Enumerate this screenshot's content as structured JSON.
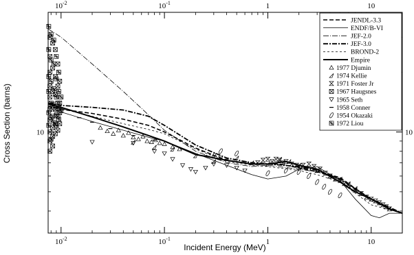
{
  "chart_data": {
    "type": "line",
    "title": "",
    "xlabel": "Incident Energy (MeV)",
    "ylabel": "Cross Section (barns)",
    "x_scale": "log",
    "y_scale": "log",
    "xlim": [
      0.0075,
      20
    ],
    "ylim": [
      3.1,
      40
    ],
    "x_ticks": [
      {
        "value": 0.01,
        "base": "10",
        "exp": "-2"
      },
      {
        "value": 0.1,
        "base": "10",
        "exp": "-1"
      },
      {
        "value": 1,
        "base": "1",
        "exp": ""
      },
      {
        "value": 10,
        "base": "10",
        "exp": ""
      }
    ],
    "y_ticks": [
      {
        "value": 10,
        "label": "10"
      }
    ],
    "grid": false,
    "legend_position": "top-right",
    "series": [
      {
        "name": "JENDL-3.3",
        "kind": "line",
        "dash": "6,3",
        "width": 1.6,
        "points": [
          [
            0.0075,
            13.5
          ],
          [
            0.01,
            13
          ],
          [
            0.02,
            12.4
          ],
          [
            0.04,
            11.6
          ],
          [
            0.07,
            10.8
          ],
          [
            0.1,
            10
          ],
          [
            0.2,
            8.3
          ],
          [
            0.4,
            7.2
          ],
          [
            0.7,
            6.9
          ],
          [
            1,
            6.9
          ],
          [
            1.3,
            6.9
          ],
          [
            2,
            6.6
          ],
          [
            3,
            6.3
          ],
          [
            5,
            5.9
          ],
          [
            7,
            5.2
          ],
          [
            10,
            4.6
          ],
          [
            15,
            4.1
          ],
          [
            20,
            3.9
          ]
        ]
      },
      {
        "name": "ENDF/B-VI",
        "kind": "line",
        "dash": "",
        "width": 0.8,
        "points": [
          [
            0.0075,
            13.2
          ],
          [
            0.01,
            12.6
          ],
          [
            0.02,
            11.3
          ],
          [
            0.04,
            10.2
          ],
          [
            0.07,
            9.4
          ],
          [
            0.1,
            9.0
          ],
          [
            0.2,
            7.8
          ],
          [
            0.4,
            6.8
          ],
          [
            0.7,
            6.1
          ],
          [
            1,
            5.8
          ],
          [
            1.5,
            6.0
          ],
          [
            2,
            6.5
          ],
          [
            3,
            6.7
          ],
          [
            5,
            5.7
          ],
          [
            7,
            4.6
          ],
          [
            10,
            3.8
          ],
          [
            12,
            3.7
          ],
          [
            15,
            3.9
          ],
          [
            20,
            3.9
          ]
        ]
      },
      {
        "name": "JEF-2.0",
        "kind": "line",
        "dash": "8,2,1,2",
        "width": 0.8,
        "points": [
          [
            0.0075,
            33
          ],
          [
            0.01,
            30
          ],
          [
            0.02,
            22
          ],
          [
            0.04,
            16
          ],
          [
            0.07,
            12.2
          ],
          [
            0.1,
            10.2
          ],
          [
            0.2,
            8.0
          ],
          [
            0.4,
            7.0
          ],
          [
            0.7,
            6.7
          ],
          [
            1,
            6.8
          ],
          [
            2,
            6.5
          ],
          [
            3,
            6.3
          ],
          [
            5,
            5.8
          ],
          [
            10,
            4.5
          ],
          [
            20,
            3.9
          ]
        ]
      },
      {
        "name": "JEF-3.0",
        "kind": "line",
        "dash": "7,2,2,2",
        "width": 1.8,
        "points": [
          [
            0.0075,
            14
          ],
          [
            0.01,
            13.6
          ],
          [
            0.02,
            13.3
          ],
          [
            0.04,
            12.9
          ],
          [
            0.07,
            12
          ],
          [
            0.1,
            10.8
          ],
          [
            0.2,
            8.6
          ],
          [
            0.4,
            7.4
          ],
          [
            0.7,
            7.0
          ],
          [
            1,
            6.9
          ],
          [
            2,
            6.7
          ],
          [
            3,
            6.4
          ],
          [
            5,
            5.8
          ],
          [
            10,
            4.6
          ],
          [
            20,
            3.9
          ]
        ]
      },
      {
        "name": "BROND-2",
        "kind": "line",
        "dash": "3,3",
        "width": 0.8,
        "points": [
          [
            0.0075,
            13.8
          ],
          [
            0.01,
            13.1
          ],
          [
            0.02,
            12.0
          ],
          [
            0.04,
            11.0
          ],
          [
            0.07,
            10.3
          ],
          [
            0.1,
            9.8
          ],
          [
            0.2,
            8.2
          ],
          [
            0.4,
            7.1
          ],
          [
            0.7,
            6.8
          ],
          [
            1,
            6.7
          ],
          [
            2,
            6.4
          ],
          [
            3,
            6.1
          ],
          [
            5,
            5.6
          ],
          [
            10,
            4.3
          ],
          [
            20,
            3.9
          ]
        ]
      },
      {
        "name": "Empire",
        "kind": "line",
        "dash": "",
        "width": 2.0,
        "points": [
          [
            0.0075,
            13.8
          ],
          [
            0.01,
            13.3
          ],
          [
            0.02,
            11.9
          ],
          [
            0.04,
            10.6
          ],
          [
            0.07,
            9.6
          ],
          [
            0.1,
            9.0
          ],
          [
            0.2,
            7.7
          ],
          [
            0.4,
            7.2
          ],
          [
            0.7,
            6.9
          ],
          [
            1,
            6.9
          ],
          [
            1.5,
            7.1
          ],
          [
            2,
            6.8
          ],
          [
            3,
            6.5
          ],
          [
            5,
            5.6
          ],
          [
            7,
            5.0
          ],
          [
            10,
            4.6
          ],
          [
            15,
            4.1
          ],
          [
            20,
            3.9
          ]
        ]
      },
      {
        "name": "1977 Djumin",
        "kind": "points",
        "marker": "tri-up",
        "points": [
          [
            0.024,
            10.5
          ],
          [
            0.028,
            10.1
          ],
          [
            0.032,
            9.8
          ],
          [
            0.036,
            10.2
          ],
          [
            0.04,
            9.6
          ],
          [
            0.045,
            9.9
          ],
          [
            0.05,
            9.4
          ],
          [
            0.056,
            9.2
          ],
          [
            0.062,
            9.5
          ],
          [
            0.068,
            9.0
          ],
          [
            0.075,
            8.9
          ],
          [
            0.082,
            9.1
          ],
          [
            0.09,
            8.8
          ],
          [
            0.1,
            8.7
          ],
          [
            0.12,
            8.4
          ],
          [
            0.14,
            8.2
          ]
        ]
      },
      {
        "name": "1974 Kellie",
        "kind": "points",
        "marker": "wedge",
        "points": [
          [
            0.05,
            8.9
          ],
          [
            0.08,
            8.4
          ],
          [
            0.12,
            8.2
          ],
          [
            0.2,
            7.6
          ],
          [
            0.3,
            7.1
          ],
          [
            0.5,
            7.4
          ],
          [
            0.7,
            7.0
          ],
          [
            1,
            6.9
          ],
          [
            1.3,
            7.3
          ],
          [
            1.6,
            7.1
          ],
          [
            2,
            6.8
          ],
          [
            3,
            6.4
          ],
          [
            4,
            6.0
          ],
          [
            5,
            5.8
          ],
          [
            6,
            5.5
          ],
          [
            7,
            5.2
          ]
        ]
      },
      {
        "name": "1971 Foster Jr",
        "kind": "points",
        "marker": "hourglass",
        "points": [
          [
            0.8,
            7.0
          ],
          [
            0.9,
            7.2
          ],
          [
            1.0,
            7.3
          ],
          [
            1.1,
            7.1
          ],
          [
            1.2,
            7.3
          ],
          [
            1.3,
            7.2
          ],
          [
            1.4,
            7.0
          ],
          [
            1.5,
            7.1
          ],
          [
            1.7,
            6.9
          ],
          [
            1.9,
            6.8
          ],
          [
            2.2,
            6.8
          ],
          [
            2.5,
            6.9
          ],
          [
            2.8,
            6.7
          ],
          [
            3.2,
            6.5
          ],
          [
            3.6,
            6.2
          ],
          [
            4,
            6.0
          ],
          [
            4.5,
            5.8
          ],
          [
            5,
            5.7
          ],
          [
            5.5,
            5.5
          ],
          [
            6,
            5.4
          ],
          [
            7,
            5.1
          ],
          [
            8,
            4.9
          ],
          [
            9,
            4.7
          ],
          [
            10,
            4.6
          ],
          [
            11,
            4.5
          ],
          [
            12,
            4.4
          ],
          [
            13,
            4.3
          ],
          [
            14,
            4.2
          ],
          [
            15,
            4.1
          ]
        ]
      },
      {
        "name": "1967 Haugsnes",
        "kind": "points",
        "marker": "x-square",
        "points": [
          [
            0.0078,
            30
          ],
          [
            0.0078,
            24
          ],
          [
            0.0078,
            20
          ],
          [
            0.0078,
            17
          ],
          [
            0.0078,
            15
          ],
          [
            0.0078,
            13
          ],
          [
            0.0078,
            11.5
          ],
          [
            0.0078,
            10
          ],
          [
            0.0078,
            9
          ],
          [
            0.0078,
            8
          ],
          [
            0.0083,
            28
          ],
          [
            0.0083,
            21
          ],
          [
            0.0083,
            16
          ],
          [
            0.0083,
            13.5
          ],
          [
            0.0083,
            12
          ],
          [
            0.0083,
            10.5
          ],
          [
            0.0083,
            9.5
          ],
          [
            0.0083,
            8.5
          ],
          [
            0.0088,
            26
          ],
          [
            0.0088,
            19
          ],
          [
            0.0088,
            15.5
          ],
          [
            0.0088,
            13
          ],
          [
            0.0088,
            11
          ],
          [
            0.0088,
            9.8
          ],
          [
            0.0093,
            22
          ],
          [
            0.0093,
            17
          ],
          [
            0.0093,
            14
          ],
          [
            0.0093,
            12
          ],
          [
            0.0093,
            10.2
          ],
          [
            0.0097,
            18
          ],
          [
            0.0097,
            14
          ],
          [
            0.0097,
            12.5
          ],
          [
            0.0097,
            11
          ]
        ]
      },
      {
        "name": "1965 Seth",
        "kind": "points",
        "marker": "tri-down",
        "points": [
          [
            0.02,
            8.9
          ],
          [
            0.05,
            8.8
          ],
          [
            0.08,
            8.0
          ],
          [
            0.1,
            7.8
          ],
          [
            0.12,
            7.3
          ],
          [
            0.15,
            6.8
          ],
          [
            0.18,
            6.5
          ],
          [
            0.2,
            6.3
          ],
          [
            0.25,
            6.6
          ],
          [
            0.3,
            6.9
          ],
          [
            0.35,
            7.4
          ],
          [
            0.4,
            6.8
          ],
          [
            0.5,
            6.6
          ],
          [
            0.6,
            6.4
          ]
        ]
      },
      {
        "name": "1958 Conner",
        "kind": "points",
        "marker": "dash",
        "points": [
          [
            0.015,
            11.8
          ],
          [
            0.02,
            11.2
          ],
          [
            0.03,
            10.4
          ],
          [
            0.05,
            9.6
          ],
          [
            0.08,
            9.1
          ],
          [
            0.15,
            8.2
          ],
          [
            0.25,
            7.6
          ],
          [
            0.4,
            7.3
          ],
          [
            0.6,
            7.1
          ]
        ]
      },
      {
        "name": "1954 Okazaki",
        "kind": "points",
        "marker": "leaf",
        "points": [
          [
            0.3,
            7.6
          ],
          [
            0.35,
            8.0
          ],
          [
            0.5,
            7.8
          ],
          [
            1.0,
            6.2
          ],
          [
            1.5,
            6.4
          ],
          [
            2.0,
            6.3
          ],
          [
            2.5,
            6.0
          ],
          [
            3.0,
            5.6
          ],
          [
            3.5,
            5.3
          ],
          [
            4.0,
            5.0
          ],
          [
            5.0,
            4.8
          ]
        ]
      },
      {
        "name": "1972 Liou",
        "kind": "points",
        "marker": "star-square",
        "points": [
          [
            0.0076,
            34
          ],
          [
            0.0076,
            26
          ],
          [
            0.0076,
            19
          ],
          [
            0.0076,
            16
          ],
          [
            0.0076,
            12.5
          ],
          [
            0.0076,
            10.8
          ],
          [
            0.008,
            31
          ],
          [
            0.008,
            23
          ],
          [
            0.008,
            18
          ],
          [
            0.008,
            14
          ],
          [
            0.008,
            11.8
          ],
          [
            0.008,
            9.2
          ],
          [
            0.0085,
            29
          ],
          [
            0.0085,
            22
          ],
          [
            0.0085,
            16.5
          ],
          [
            0.0085,
            13.8
          ],
          [
            0.0085,
            11.2
          ],
          [
            0.009,
            24
          ],
          [
            0.009,
            18.5
          ],
          [
            0.009,
            15
          ],
          [
            0.009,
            12.2
          ],
          [
            0.009,
            10.8
          ],
          [
            0.0095,
            20
          ],
          [
            0.0095,
            16
          ],
          [
            0.0095,
            13.2
          ],
          [
            0.0095,
            11.6
          ],
          [
            0.01,
            15
          ],
          [
            0.01,
            12.8
          ]
        ]
      }
    ]
  }
}
